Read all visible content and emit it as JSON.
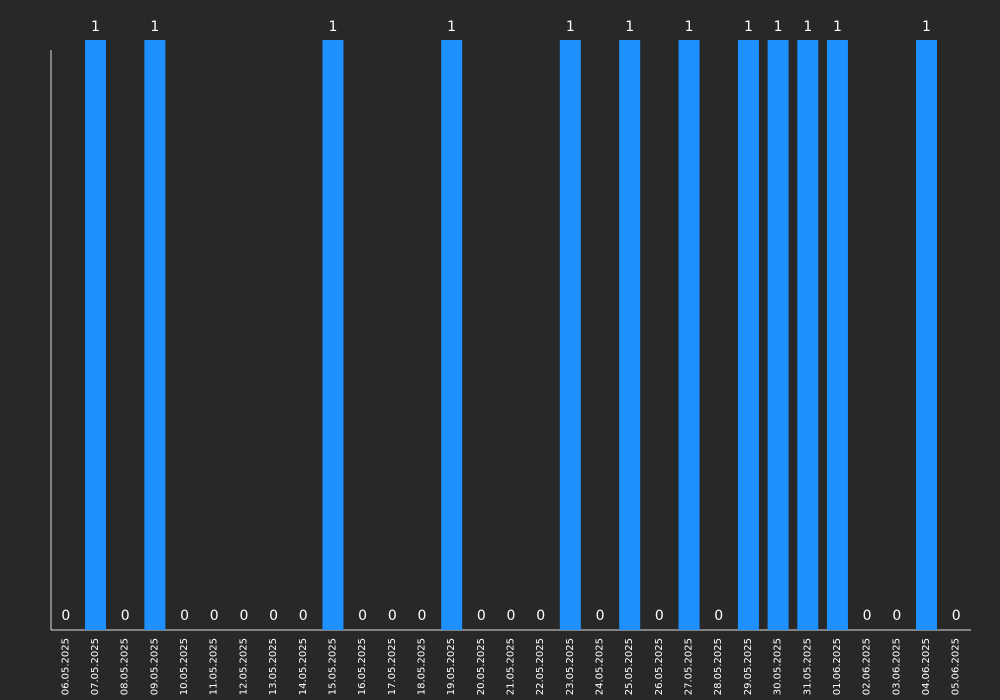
{
  "chart_data": {
    "type": "bar",
    "categories": [
      "06.05.2025",
      "07.05.2025",
      "08.05.2025",
      "09.05.2025",
      "10.05.2025",
      "11.05.2025",
      "12.05.2025",
      "13.05.2025",
      "14.05.2025",
      "15.05.2025",
      "16.05.2025",
      "17.05.2025",
      "18.05.2025",
      "19.05.2025",
      "20.05.2025",
      "21.05.2025",
      "22.05.2025",
      "23.05.2025",
      "24.05.2025",
      "25.05.2025",
      "26.05.2025",
      "27.05.2025",
      "28.05.2025",
      "29.05.2025",
      "30.05.2025",
      "31.05.2025",
      "01.06.2025",
      "02.06.2025",
      "03.06.2025",
      "04.06.2025",
      "05.06.2025"
    ],
    "values": [
      0,
      1,
      0,
      1,
      0,
      0,
      0,
      0,
      0,
      1,
      0,
      0,
      0,
      1,
      0,
      0,
      0,
      1,
      0,
      1,
      0,
      1,
      0,
      1,
      1,
      1,
      1,
      0,
      0,
      1,
      0
    ],
    "title": "",
    "xlabel": "",
    "ylabel": "",
    "ylim": [
      0,
      1
    ],
    "grid": false,
    "data_labels": true
  },
  "colors": {
    "background": "#282828",
    "bar": "#1e90ff",
    "axis": "#dddddd",
    "text": "#ffffff"
  }
}
